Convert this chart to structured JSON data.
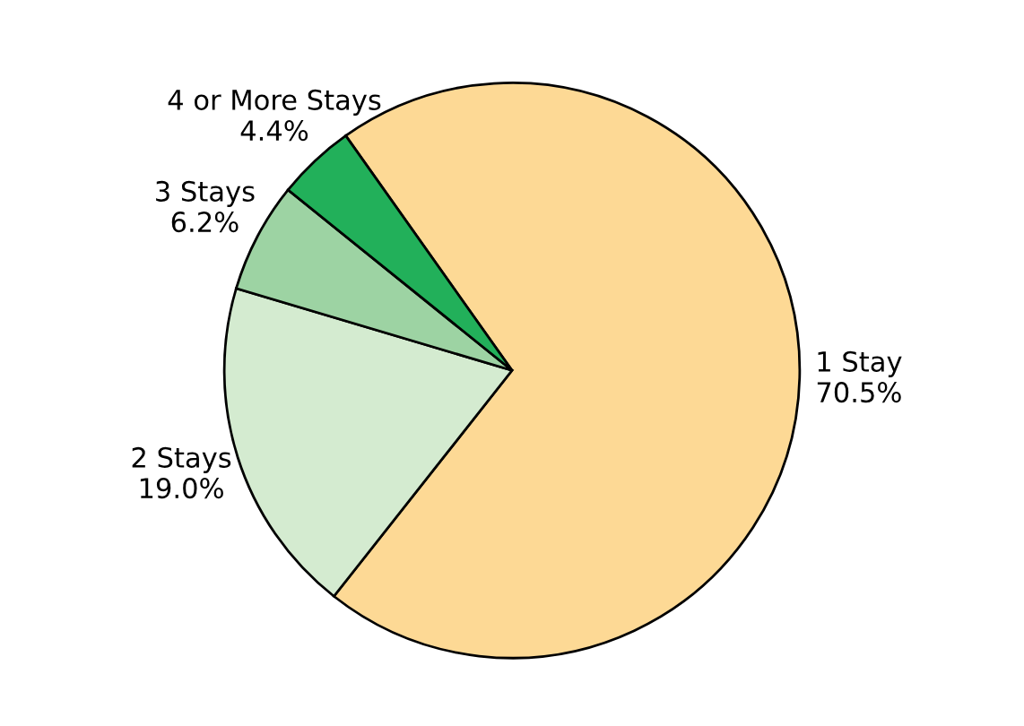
{
  "chart_data": {
    "type": "pie",
    "categories": [
      "1 Stay",
      "2 Stays",
      "3 Stays",
      "4 or More Stays"
    ],
    "values": [
      70.5,
      19.0,
      6.2,
      4.4
    ],
    "colors": [
      "#fdd995",
      "#d4ebd0",
      "#9dd3a3",
      "#22b05a"
    ],
    "value_labels": [
      "70.5%",
      "19.0%",
      "6.2%",
      "4.4%"
    ],
    "legend": false
  }
}
